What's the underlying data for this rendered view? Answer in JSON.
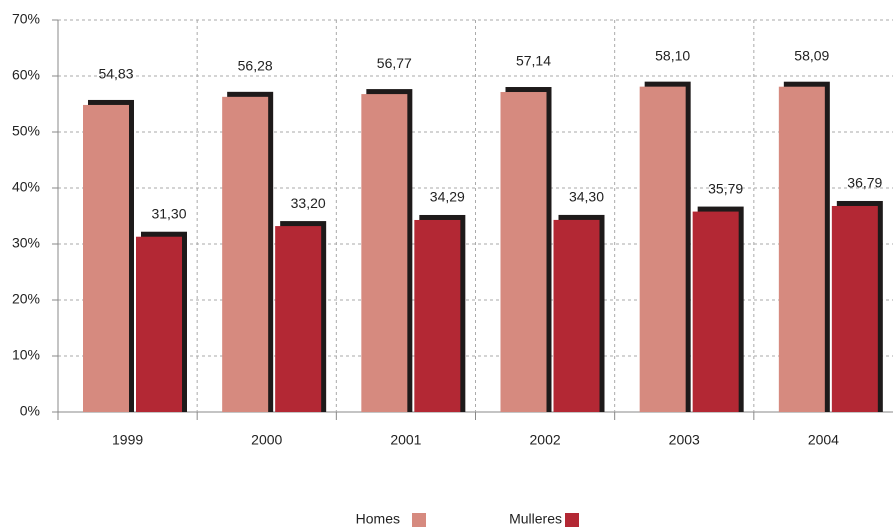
{
  "chart_data": {
    "type": "bar",
    "categories": [
      "1999",
      "2000",
      "2001",
      "2002",
      "2003",
      "2004"
    ],
    "series": [
      {
        "name": "Homes",
        "color": "#d68a7f",
        "values": [
          54.83,
          56.28,
          56.77,
          57.14,
          58.1,
          58.09
        ],
        "value_labels": [
          "54,83",
          "56,28",
          "56,77",
          "57,14",
          "58,10",
          "58,09"
        ]
      },
      {
        "name": "Mulleres",
        "color": "#b32834",
        "values": [
          31.3,
          33.2,
          34.29,
          34.3,
          35.79,
          36.79
        ],
        "value_labels": [
          "31,30",
          "33,20",
          "34,29",
          "34,30",
          "35,79",
          "36,79"
        ]
      }
    ],
    "ylim": [
      0,
      70
    ],
    "yticks": [
      {
        "value": 0,
        "label": "0%"
      },
      {
        "value": 10,
        "label": "10%"
      },
      {
        "value": 20,
        "label": "20%"
      },
      {
        "value": 30,
        "label": "30%"
      },
      {
        "value": 40,
        "label": "40%"
      },
      {
        "value": 50,
        "label": "50%"
      },
      {
        "value": 60,
        "label": "60%"
      },
      {
        "value": 70,
        "label": "70%"
      }
    ],
    "grid": true
  }
}
